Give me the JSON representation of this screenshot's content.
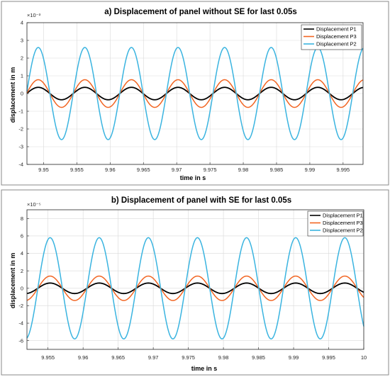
{
  "chart_data": [
    {
      "type": "line",
      "title": "a) Displacement of panel without SE for last 0.05s",
      "xlabel": "time in s",
      "ylabel": "displacement in m",
      "y_exponent_label": "×10⁻³",
      "xlim": [
        9.9475,
        9.998
      ],
      "ylim": [
        -4,
        4
      ],
      "xticks": [
        9.95,
        9.955,
        9.96,
        9.965,
        9.97,
        9.975,
        9.98,
        9.985,
        9.99,
        9.995
      ],
      "xtick_labels": [
        "9.95",
        "9.955",
        "9.96",
        "9.965",
        "9.97",
        "9.975",
        "9.98",
        "9.985",
        "9.99",
        "9.995"
      ],
      "yticks": [
        -4,
        -3,
        -2,
        -1,
        0,
        1,
        2,
        3,
        4
      ],
      "ytick_labels": [
        "-4",
        "-3",
        "-2",
        "-1",
        "0",
        "1",
        "2",
        "3",
        "4"
      ],
      "grid": true,
      "legend_position": "top-right",
      "wave": {
        "period": 0.007,
        "first_peak": 9.9492
      },
      "series": [
        {
          "name": "Displacement P1",
          "color": "#000000",
          "amplitude": 0.35,
          "phase_shift": 0.0
        },
        {
          "name": "Displacement P3",
          "color": "#f26522",
          "amplitude": 0.78,
          "phase_shift": 0.0
        },
        {
          "name": "Displacement P2",
          "color": "#3ab4e0",
          "amplitude": 2.6,
          "phase_shift": 0.0
        }
      ]
    },
    {
      "type": "line",
      "title": "b) Displacement of panel with SE for last 0.05s",
      "xlabel": "time in s",
      "ylabel": "displacement in m",
      "y_exponent_label": "×10⁻⁵",
      "xlim": [
        9.952,
        10.0
      ],
      "ylim": [
        -7,
        9
      ],
      "xticks": [
        9.955,
        9.96,
        9.965,
        9.97,
        9.975,
        9.98,
        9.985,
        9.99,
        9.995,
        10.0
      ],
      "xtick_labels": [
        "9.955",
        "9.96",
        "9.965",
        "9.97",
        "9.975",
        "9.98",
        "9.985",
        "9.99",
        "9.995",
        "10"
      ],
      "yticks": [
        -6,
        -4,
        -2,
        0,
        2,
        4,
        6,
        8
      ],
      "ytick_labels": [
        "-6",
        "-4",
        "-2",
        "0",
        "2",
        "4",
        "6",
        "8"
      ],
      "grid": true,
      "legend_position": "top-right",
      "wave": {
        "period": 0.007,
        "first_peak": 9.9553
      },
      "series": [
        {
          "name": "Displacement P1",
          "color": "#000000",
          "amplitude": 0.6,
          "phase_shift": 0.0
        },
        {
          "name": "Displacement P3",
          "color": "#f26522",
          "amplitude": 1.4,
          "phase_shift": 0.0
        },
        {
          "name": "Displacement P2",
          "color": "#3ab4e0",
          "amplitude": 5.8,
          "phase_shift": 0.0
        }
      ]
    }
  ]
}
